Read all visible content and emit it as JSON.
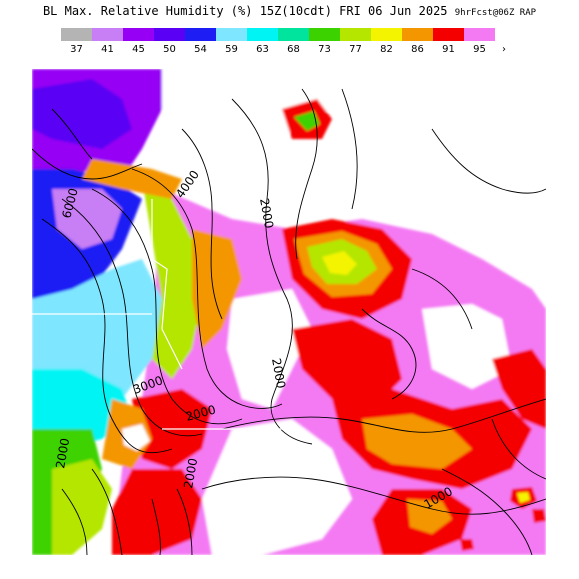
{
  "title": {
    "main": "BL Max. Relative Humidity (%) 15Z(10cdt) FRI 06 Jun 2025",
    "meta": "9hrFcst@06Z RAP"
  },
  "legend": {
    "items": [
      {
        "label": "37",
        "color": "#b4b4b4"
      },
      {
        "label": "41",
        "color": "#c87ef4"
      },
      {
        "label": "45",
        "color": "#9600f4"
      },
      {
        "label": "50",
        "color": "#5a00f4"
      },
      {
        "label": "54",
        "color": "#1e1ef4"
      },
      {
        "label": "59",
        "color": "#7ee6ff"
      },
      {
        "label": "63",
        "color": "#00f4f4"
      },
      {
        "label": "68",
        "color": "#00e49e"
      },
      {
        "label": "73",
        "color": "#3cd200"
      },
      {
        "label": "77",
        "color": "#b4e600"
      },
      {
        "label": "82",
        "color": "#f4f400"
      },
      {
        "label": "86",
        "color": "#f49600"
      },
      {
        "label": "91",
        "color": "#f40000"
      },
      {
        "label": "95",
        "color": "#f47af4"
      }
    ],
    "end_marker": "›"
  },
  "contours": {
    "label_6000": "6000",
    "label_4000": "4000",
    "label_3000": "3000",
    "label_2000": "2000",
    "label_1000": "1000"
  }
}
